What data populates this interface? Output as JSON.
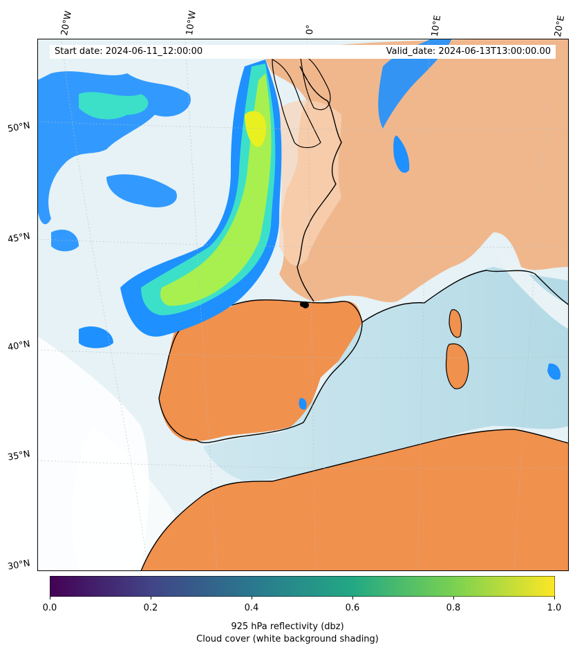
{
  "banner": {
    "start_date": "Start date: 2024-06-11_12:00:00",
    "valid_date": "Valid_date: 2024-06-13T13:00:00.00"
  },
  "graticule": {
    "lon_labels": [
      "20°W",
      "10°W",
      "0°",
      "10°E",
      "20°E"
    ],
    "lat_labels": [
      "50°N",
      "45°N",
      "40°N",
      "35°N",
      "30°N"
    ]
  },
  "colorbar": {
    "ticks": [
      "0.0",
      "0.2",
      "0.4",
      "0.6",
      "0.8",
      "1.0"
    ],
    "range": [
      0.0,
      1.0
    ],
    "colormap": "viridis",
    "colors": [
      "#440154",
      "#414487",
      "#2a788e",
      "#22a884",
      "#7ad151",
      "#fde725"
    ]
  },
  "captions": {
    "line1": "925 hPa reflectivity (dbz)",
    "line2": "Cloud cover (white background shading)"
  },
  "palette": {
    "land": "#f2a066",
    "sea": "#b7dde8",
    "cloud": "#ffffff",
    "refl_low": "#1e90ff",
    "refl_mid": "#3ce0c8",
    "refl_high": "#a8f050",
    "refl_peak": "#e8f020"
  }
}
